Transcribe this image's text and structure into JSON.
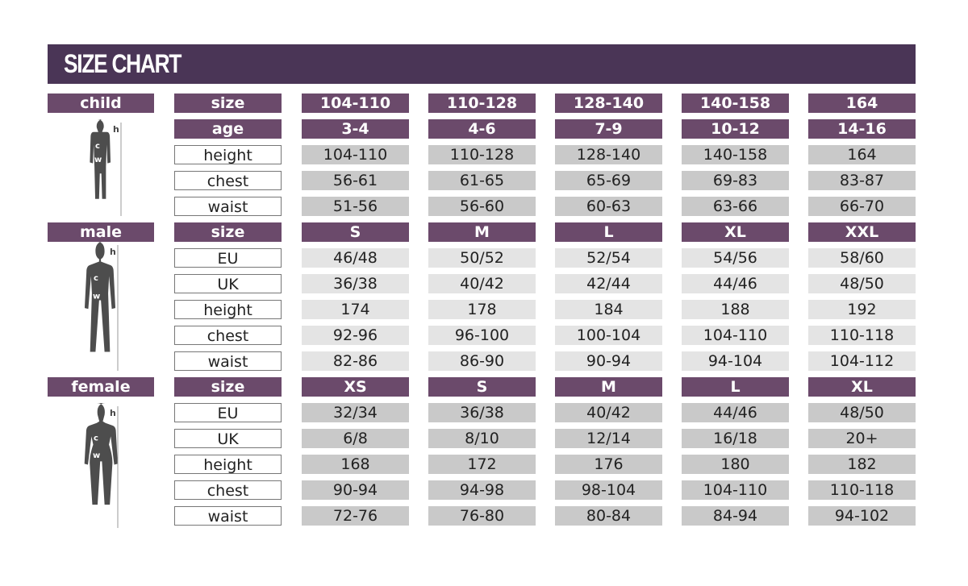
{
  "title": "SIZE CHART",
  "colors": {
    "header": "#4a3556",
    "cell_header": "#6b4a6b",
    "cell_dark": "#c9c9c9",
    "cell_light": "#e4e4e4"
  },
  "sections": [
    {
      "name": "child",
      "figure_icon": "child-silhouette-icon",
      "figure_labels": {
        "h": "h",
        "c": "c",
        "w": "w"
      },
      "rows": [
        {
          "label": "size",
          "header": true,
          "values": [
            "104-110",
            "110-128",
            "128-140",
            "140-158",
            "164"
          ]
        },
        {
          "label": "age",
          "header": true,
          "values": [
            "3-4",
            "4-6",
            "7-9",
            "10-12",
            "14-16"
          ]
        },
        {
          "label": "height",
          "values": [
            "104-110",
            "110-128",
            "128-140",
            "140-158",
            "164"
          ]
        },
        {
          "label": "chest",
          "values": [
            "56-61",
            "61-65",
            "65-69",
            "69-83",
            "83-87"
          ]
        },
        {
          "label": "waist",
          "values": [
            "51-56",
            "56-60",
            "60-63",
            "63-66",
            "66-70"
          ]
        }
      ]
    },
    {
      "name": "male",
      "figure_icon": "male-silhouette-icon",
      "figure_labels": {
        "h": "h",
        "c": "c",
        "w": "w"
      },
      "rows": [
        {
          "label": "size",
          "header": true,
          "values": [
            "S",
            "M",
            "L",
            "XL",
            "XXL"
          ]
        },
        {
          "label": "EU",
          "values": [
            "46/48",
            "50/52",
            "52/54",
            "54/56",
            "58/60"
          ]
        },
        {
          "label": "UK",
          "values": [
            "36/38",
            "40/42",
            "42/44",
            "44/46",
            "48/50"
          ]
        },
        {
          "label": "height",
          "values": [
            "174",
            "178",
            "184",
            "188",
            "192"
          ]
        },
        {
          "label": "chest",
          "values": [
            "92-96",
            "96-100",
            "100-104",
            "104-110",
            "110-118"
          ]
        },
        {
          "label": "waist",
          "values": [
            "82-86",
            "86-90",
            "90-94",
            "94-104",
            "104-112"
          ]
        }
      ]
    },
    {
      "name": "female",
      "figure_icon": "female-silhouette-icon",
      "figure_labels": {
        "h": "h",
        "c": "c",
        "w": "w"
      },
      "rows": [
        {
          "label": "size",
          "header": true,
          "values": [
            "XS",
            "S",
            "M",
            "L",
            "XL"
          ]
        },
        {
          "label": "EU",
          "values": [
            "32/34",
            "36/38",
            "40/42",
            "44/46",
            "48/50"
          ]
        },
        {
          "label": "UK",
          "values": [
            "6/8",
            "8/10",
            "12/14",
            "16/18",
            "20+"
          ]
        },
        {
          "label": "height",
          "values": [
            "168",
            "172",
            "176",
            "180",
            "182"
          ]
        },
        {
          "label": "chest",
          "values": [
            "90-94",
            "94-98",
            "98-104",
            "104-110",
            "110-118"
          ]
        },
        {
          "label": "waist",
          "values": [
            "72-76",
            "76-80",
            "80-84",
            "84-94",
            "94-102"
          ]
        }
      ]
    }
  ]
}
